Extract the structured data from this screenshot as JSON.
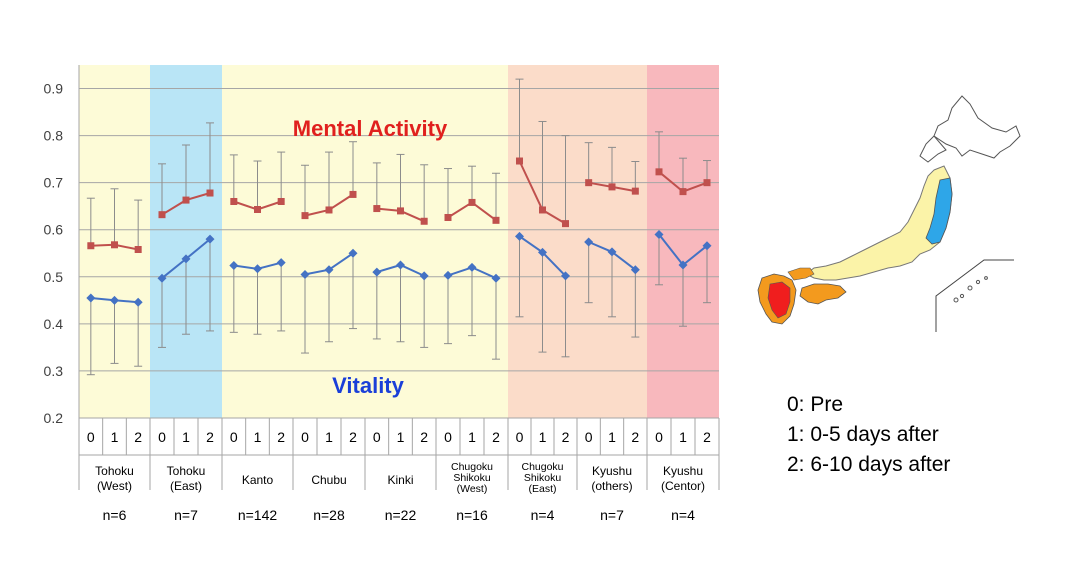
{
  "chart_data": {
    "type": "line",
    "ylim": [
      0.2,
      0.95
    ],
    "yticks": [
      "0.2",
      "0.3",
      "0.4",
      "0.5",
      "0.6",
      "0.7",
      "0.8",
      "0.9"
    ],
    "grid": true,
    "groups": [
      {
        "name": "Tohoku (West)",
        "line1": "Tohoku",
        "line2": "(West)",
        "n": "n=6",
        "color": "#FDFBD7"
      },
      {
        "name": "Tohoku (East)",
        "line1": "Tohoku",
        "line2": "(East)",
        "n": "n=7",
        "color": "#B9E5F6"
      },
      {
        "name": "Kanto",
        "line1": "Kanto",
        "line2": "",
        "n": "n=142",
        "color": "#FDFBD7"
      },
      {
        "name": "Chubu",
        "line1": "Chubu",
        "line2": "",
        "n": "n=28",
        "color": "#FDFBD7"
      },
      {
        "name": "Kinki",
        "line1": "Kinki",
        "line2": "",
        "n": "n=22",
        "color": "#FDFBD7"
      },
      {
        "name": "Chugoku Shikoku (West)",
        "line1": "Chugoku",
        "line2": "Shikoku",
        "line3": "(West)",
        "n": "n=16",
        "color": "#FDFBD7"
      },
      {
        "name": "Chugoku Shikoku (East)",
        "line1": "Chugoku",
        "line2": "Shikoku",
        "line3": "(East)",
        "n": "n=4",
        "color": "#FBDCC9"
      },
      {
        "name": "Kyushu (others)",
        "line1": "Kyushu",
        "line2": "(others)",
        "n": "n=7",
        "color": "#FBDCC9"
      },
      {
        "name": "Kyushu (Centor)",
        "line1": "Kyushu",
        "line2": "(Centor)",
        "n": "n=4",
        "color": "#F8B8BD"
      }
    ],
    "periods": [
      "0",
      "1",
      "2"
    ],
    "series": [
      {
        "name": "Mental Activity",
        "color": "#C0504D",
        "marker": "square",
        "values": [
          [
            0.566,
            0.568,
            0.558
          ],
          [
            0.632,
            0.663,
            0.678
          ],
          [
            0.66,
            0.643,
            0.66
          ],
          [
            0.63,
            0.642,
            0.675
          ],
          [
            0.645,
            0.64,
            0.618
          ],
          [
            0.626,
            0.658,
            0.62
          ],
          [
            0.746,
            0.642,
            0.613
          ],
          [
            0.7,
            0.691,
            0.682
          ],
          [
            0.723,
            0.681,
            0.7
          ]
        ],
        "upper": [
          [
            0.667,
            0.687,
            0.663
          ],
          [
            0.74,
            0.78,
            0.827
          ],
          [
            0.759,
            0.746,
            0.765
          ],
          [
            0.737,
            0.765,
            0.787
          ],
          [
            0.742,
            0.76,
            0.738
          ],
          [
            0.73,
            0.735,
            0.72
          ],
          [
            0.92,
            0.83,
            0.8
          ],
          [
            0.785,
            0.775,
            0.745
          ],
          [
            0.808,
            0.752,
            0.747
          ]
        ]
      },
      {
        "name": "Vitality",
        "color": "#4472C4",
        "marker": "diamond",
        "values": [
          [
            0.455,
            0.45,
            0.446
          ],
          [
            0.497,
            0.538,
            0.58
          ],
          [
            0.524,
            0.517,
            0.53
          ],
          [
            0.505,
            0.515,
            0.55
          ],
          [
            0.51,
            0.525,
            0.502
          ],
          [
            0.503,
            0.52,
            0.497
          ],
          [
            0.586,
            0.552,
            0.502
          ],
          [
            0.574,
            0.553,
            0.515
          ],
          [
            0.59,
            0.525,
            0.566
          ]
        ],
        "lower": [
          [
            0.292,
            0.316,
            0.31
          ],
          [
            0.35,
            0.378,
            0.385
          ],
          [
            0.382,
            0.378,
            0.385
          ],
          [
            0.338,
            0.362,
            0.39
          ],
          [
            0.368,
            0.362,
            0.35
          ],
          [
            0.358,
            0.375,
            0.325
          ],
          [
            0.415,
            0.34,
            0.33
          ],
          [
            0.445,
            0.415,
            0.372
          ],
          [
            0.483,
            0.395,
            0.445
          ]
        ]
      }
    ],
    "annotations": {
      "mental_label": "Mental  Activity",
      "vitality_label": "Vitality",
      "mental_color": "#E0201E",
      "vitality_color": "#1A3FD8"
    }
  },
  "legend": {
    "line0": "0: Pre",
    "line1": "1: 0-5 days after",
    "line2": "2: 6-10 days after"
  },
  "map": {
    "base_color": "#FBF3A8",
    "east_color": "#2EA6E8",
    "orange_color": "#F39A1E",
    "red_color": "#F01E1E"
  }
}
